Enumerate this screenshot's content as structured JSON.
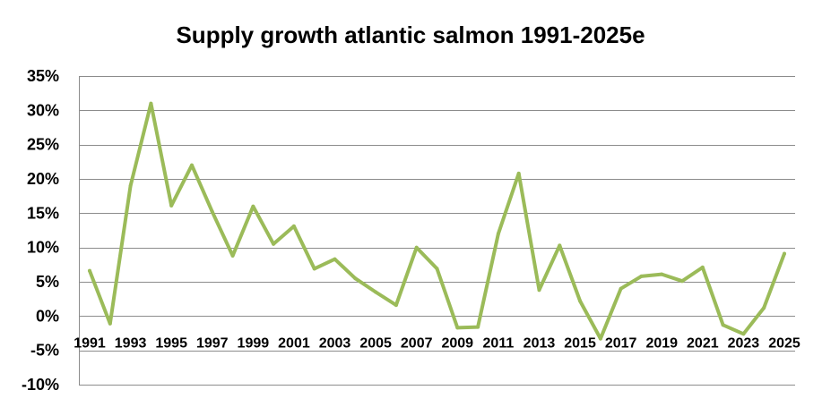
{
  "chart_data": {
    "type": "line",
    "title": "Supply growth atlantic salmon 1991-2025e",
    "xlabel": "",
    "ylabel": "",
    "ylim": [
      -0.1,
      0.35
    ],
    "ytick_values": [
      -0.1,
      -0.05,
      0.0,
      0.05,
      0.1,
      0.15,
      0.2,
      0.25,
      0.3,
      0.35
    ],
    "ytick_labels": [
      "-10%",
      "-5%",
      "0%",
      "5%",
      "10%",
      "15%",
      "20%",
      "25%",
      "30%",
      "35%"
    ],
    "xtick_labels": [
      "1991",
      "1993",
      "1995",
      "1997",
      "1999",
      "2001",
      "2003",
      "2005",
      "2007",
      "2009",
      "2011",
      "2013",
      "2015",
      "2017",
      "2019",
      "2021",
      "2023",
      "2025"
    ],
    "grid": true,
    "legend": "none",
    "x": [
      1991,
      1992,
      1993,
      1994,
      1995,
      1996,
      1997,
      1998,
      1999,
      2000,
      2001,
      2002,
      2003,
      2004,
      2005,
      2006,
      2007,
      2008,
      2009,
      2010,
      2011,
      2012,
      2013,
      2014,
      2015,
      2016,
      2017,
      2018,
      2019,
      2020,
      2021,
      2022,
      2023,
      2024,
      2025
    ],
    "series": [
      {
        "color": "#9bbb59",
        "values": [
          0.066,
          -0.011,
          0.19,
          0.31,
          0.161,
          0.22,
          0.152,
          0.088,
          0.16,
          0.105,
          0.131,
          0.069,
          0.083,
          0.055,
          0.035,
          0.016,
          0.1,
          0.069,
          -0.017,
          -0.016,
          0.12,
          0.208,
          0.038,
          0.103,
          0.022,
          -0.033,
          0.04,
          0.058,
          0.061,
          0.051,
          0.071,
          -0.013,
          -0.026,
          0.012,
          0.091
        ]
      }
    ]
  }
}
